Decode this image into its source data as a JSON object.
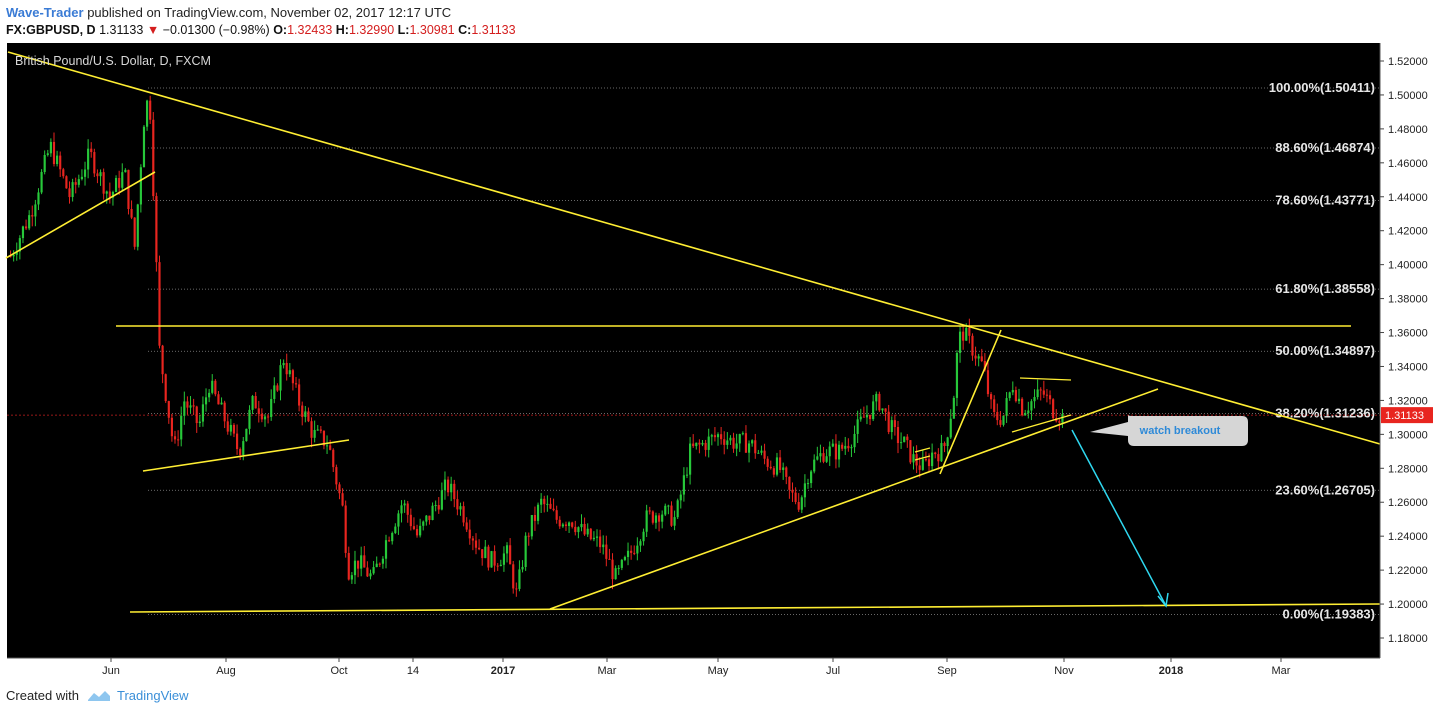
{
  "header": {
    "author": "Wave-Trader",
    "published_text": "published on TradingView.com, November 02, 2017 12:17 UTC"
  },
  "quote": {
    "symbol": "FX:GBPUSD, D",
    "last": "1.31133",
    "change": "−0.01300 (−0.98%)",
    "open_label": "O:",
    "open": "1.32433",
    "high_label": "H:",
    "high": "1.32990",
    "low_label": "L:",
    "low": "1.30981",
    "close_label": "C:",
    "close": "1.31133"
  },
  "footer": {
    "created_with": "Created with",
    "brand": "TradingView"
  },
  "colors": {
    "background": "#000000",
    "up_candle": "#27c83a",
    "down_candle": "#e8251f",
    "trendline": "#ffee33",
    "arrow": "#2fd8f0",
    "price_tag": "#e8251f"
  },
  "chart_data": {
    "type": "candlestick",
    "title": "British Pound/U.S. Dollar, D, FXCM",
    "ylim": [
      1.17,
      1.53
    ],
    "y_ticks": [
      "1.52000",
      "1.50000",
      "1.48000",
      "1.46000",
      "1.44000",
      "1.42000",
      "1.40000",
      "1.38000",
      "1.36000",
      "1.34000",
      "1.32000",
      "1.30000",
      "1.28000",
      "1.26000",
      "1.24000",
      "1.22000",
      "1.20000",
      "1.18000"
    ],
    "x_ticks": [
      "Jun",
      "Aug",
      "Oct",
      "14",
      "2017",
      "Mar",
      "May",
      "Jul",
      "Sep",
      "Nov",
      "2018",
      "Mar"
    ],
    "last_price": "1.31133",
    "fib_levels": [
      {
        "label": "100.00%(1.50411)",
        "value": 1.50411
      },
      {
        "label": "88.60%(1.46874)",
        "value": 1.46874
      },
      {
        "label": "78.60%(1.43771)",
        "value": 1.43771
      },
      {
        "label": "61.80%(1.38558)",
        "value": 1.38558
      },
      {
        "label": "50.00%(1.34897)",
        "value": 1.34897
      },
      {
        "label": "38.20%(1.31236)",
        "value": 1.31236
      },
      {
        "label": "23.60%(1.26705)",
        "value": 1.26705
      },
      {
        "label": "0.00%(1.19383)",
        "value": 1.19383
      }
    ],
    "annotation": "watch breakout",
    "price_path": [
      [
        0.0,
        1.405
      ],
      [
        0.02,
        1.43
      ],
      [
        0.04,
        1.47
      ],
      [
        0.06,
        1.44
      ],
      [
        0.08,
        1.465
      ],
      [
        0.1,
        1.44
      ],
      [
        0.115,
        1.455
      ],
      [
        0.125,
        1.41
      ],
      [
        0.135,
        1.49
      ],
      [
        0.14,
        1.5
      ],
      [
        0.145,
        1.43
      ],
      [
        0.15,
        1.35
      ],
      [
        0.155,
        1.33
      ],
      [
        0.165,
        1.29
      ],
      [
        0.175,
        1.32
      ],
      [
        0.19,
        1.305
      ],
      [
        0.2,
        1.33
      ],
      [
        0.215,
        1.31
      ],
      [
        0.23,
        1.29
      ],
      [
        0.245,
        1.32
      ],
      [
        0.26,
        1.31
      ],
      [
        0.275,
        1.345
      ],
      [
        0.29,
        1.32
      ],
      [
        0.305,
        1.3
      ],
      [
        0.32,
        1.295
      ],
      [
        0.335,
        1.255
      ],
      [
        0.34,
        1.22
      ],
      [
        0.35,
        1.225
      ],
      [
        0.365,
        1.215
      ],
      [
        0.38,
        1.24
      ],
      [
        0.395,
        1.26
      ],
      [
        0.41,
        1.24
      ],
      [
        0.425,
        1.255
      ],
      [
        0.44,
        1.27
      ],
      [
        0.455,
        1.255
      ],
      [
        0.47,
        1.235
      ],
      [
        0.485,
        1.225
      ],
      [
        0.5,
        1.23
      ],
      [
        0.51,
        1.205
      ],
      [
        0.52,
        1.24
      ],
      [
        0.535,
        1.26
      ],
      [
        0.55,
        1.25
      ],
      [
        0.565,
        1.25
      ],
      [
        0.58,
        1.24
      ],
      [
        0.595,
        1.235
      ],
      [
        0.61,
        1.215
      ],
      [
        0.625,
        1.23
      ],
      [
        0.64,
        1.25
      ],
      [
        0.655,
        1.255
      ],
      [
        0.67,
        1.25
      ],
      [
        0.685,
        1.29
      ],
      [
        0.7,
        1.295
      ],
      [
        0.715,
        1.3
      ],
      [
        0.73,
        1.295
      ],
      [
        0.745,
        1.295
      ],
      [
        0.76,
        1.285
      ],
      [
        0.775,
        1.28
      ],
      [
        0.785,
        1.265
      ],
      [
        0.795,
        1.26
      ],
      [
        0.805,
        1.28
      ],
      [
        0.82,
        1.29
      ],
      [
        0.835,
        1.29
      ],
      [
        0.85,
        1.3
      ],
      [
        0.86,
        1.31
      ],
      [
        0.875,
        1.32
      ],
      [
        0.89,
        1.3
      ],
      [
        0.9,
        1.295
      ],
      [
        0.91,
        1.285
      ],
      [
        0.92,
        1.28
      ],
      [
        0.93,
        1.29
      ],
      [
        0.94,
        1.29
      ],
      [
        0.95,
        1.32
      ],
      [
        0.955,
        1.355
      ],
      [
        0.96,
        1.36
      ],
      [
        0.97,
        1.35
      ],
      [
        0.98,
        1.34
      ],
      [
        0.99,
        1.31
      ],
      [
        1.0,
        1.31
      ],
      [
        1.01,
        1.33
      ],
      [
        1.02,
        1.315
      ],
      [
        1.03,
        1.32
      ],
      [
        1.04,
        1.325
      ],
      [
        1.05,
        1.315
      ],
      [
        1.06,
        1.31
      ]
    ]
  }
}
